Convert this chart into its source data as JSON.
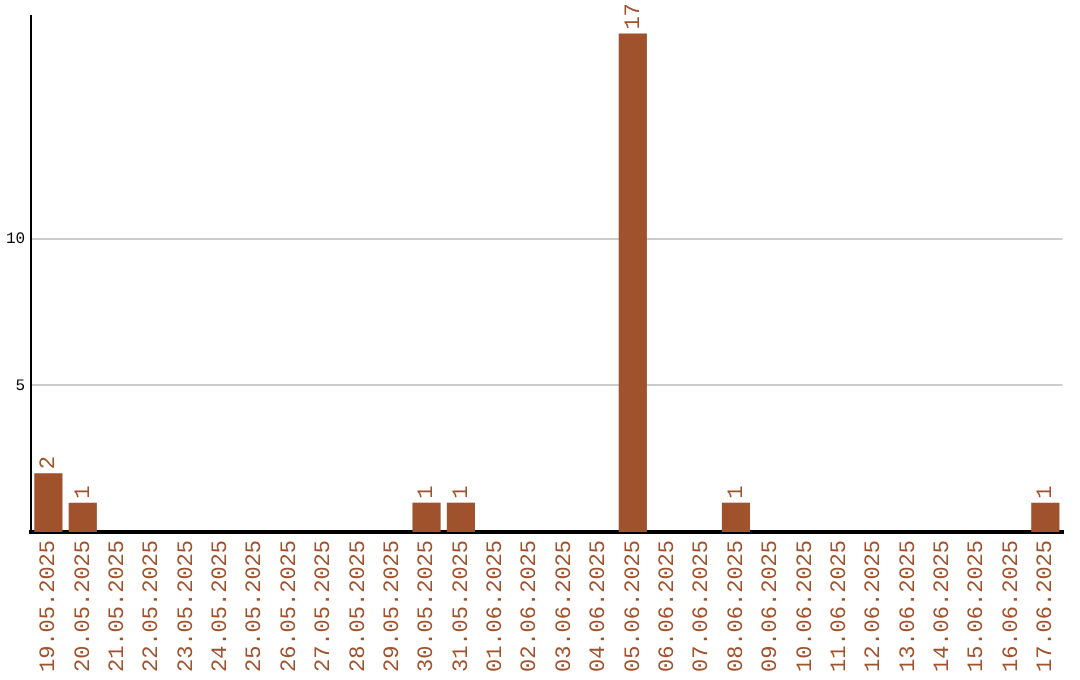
{
  "chart_data": {
    "type": "bar",
    "categories": [
      "19.05.2025",
      "20.05.2025",
      "21.05.2025",
      "22.05.2025",
      "23.05.2025",
      "24.05.2025",
      "25.05.2025",
      "26.05.2025",
      "27.05.2025",
      "28.05.2025",
      "29.05.2025",
      "30.05.2025",
      "31.05.2025",
      "01.06.2025",
      "02.06.2025",
      "03.06.2025",
      "04.06.2025",
      "05.06.2025",
      "06.06.2025",
      "07.06.2025",
      "08.06.2025",
      "09.06.2025",
      "10.06.2025",
      "11.06.2025",
      "12.06.2025",
      "13.06.2025",
      "14.06.2025",
      "15.06.2025",
      "16.06.2025",
      "17.06.2025"
    ],
    "values": [
      2,
      1,
      0,
      0,
      0,
      0,
      0,
      0,
      0,
      0,
      0,
      1,
      1,
      0,
      0,
      0,
      0,
      17,
      0,
      0,
      1,
      0,
      0,
      0,
      0,
      0,
      0,
      0,
      0,
      1
    ],
    "value_labels": [
      "2",
      "1",
      null,
      null,
      null,
      null,
      null,
      null,
      null,
      null,
      null,
      "1",
      "1",
      null,
      null,
      null,
      null,
      "17",
      null,
      null,
      "1",
      null,
      null,
      null,
      null,
      null,
      null,
      null,
      null,
      "1"
    ],
    "color": "#a0522d",
    "ylim": [
      0,
      17.6
    ],
    "yticks": [
      5,
      10
    ],
    "grid": "y",
    "legend": false
  }
}
